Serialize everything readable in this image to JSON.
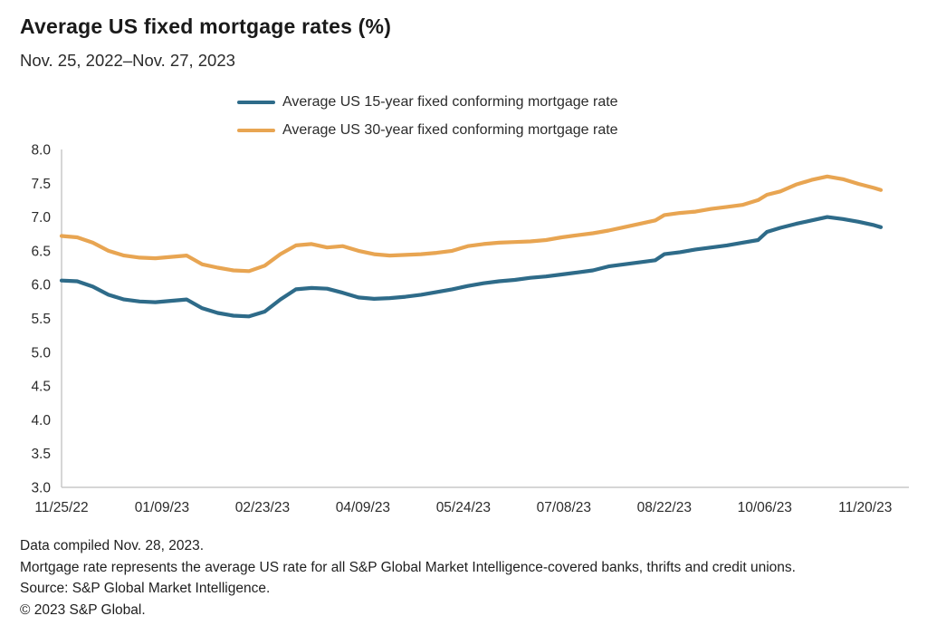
{
  "header": {
    "title": "Average US fixed mortgage rates (%)",
    "subtitle": "Nov. 25, 2022–Nov. 27, 2023"
  },
  "legend": [
    {
      "label": "Average US 15-year fixed conforming mortgage rate",
      "color": "#2E6B89"
    },
    {
      "label": "Average US 30-year fixed conforming mortgage rate",
      "color": "#E8A552"
    }
  ],
  "chart_data": {
    "type": "line",
    "title": "Average US fixed mortgage rates (%)",
    "subtitle": "Nov. 25, 2022–Nov. 27, 2023",
    "xlabel": "",
    "ylabel": "",
    "ylim": [
      3.0,
      8.0
    ],
    "y_ticks": [
      8.0,
      7.5,
      7.0,
      6.5,
      6.0,
      5.5,
      5.0,
      4.5,
      4.0,
      3.5,
      3.0
    ],
    "x_tick_labels": [
      "11/25/22",
      "01/09/23",
      "02/23/23",
      "04/09/23",
      "05/24/23",
      "07/08/23",
      "08/22/23",
      "10/06/23",
      "11/20/23"
    ],
    "x_tick_days": [
      0,
      45,
      90,
      135,
      180,
      225,
      270,
      315,
      360
    ],
    "x_total_days": 367,
    "grid": "off",
    "legend_position": "top",
    "axis_color": "#c9c9c9",
    "tick_label_color": "#2b2b2b",
    "x_days": [
      0,
      7,
      14,
      21,
      28,
      35,
      42,
      49,
      56,
      63,
      70,
      77,
      84,
      91,
      98,
      105,
      112,
      119,
      126,
      133,
      140,
      147,
      154,
      161,
      168,
      175,
      182,
      189,
      196,
      203,
      210,
      217,
      224,
      231,
      238,
      245,
      252,
      259,
      266,
      270,
      277,
      284,
      291,
      298,
      305,
      312,
      316,
      322,
      329,
      336,
      343,
      350,
      357,
      364,
      367
    ],
    "series": [
      {
        "name": "Average US 15-year fixed conforming mortgage rate",
        "color": "#2E6B89",
        "values": [
          6.06,
          6.05,
          5.97,
          5.85,
          5.78,
          5.75,
          5.74,
          5.76,
          5.78,
          5.65,
          5.58,
          5.54,
          5.53,
          5.6,
          5.78,
          5.93,
          5.95,
          5.94,
          5.88,
          5.81,
          5.79,
          5.8,
          5.82,
          5.85,
          5.89,
          5.93,
          5.98,
          6.02,
          6.05,
          6.07,
          6.1,
          6.12,
          6.15,
          6.18,
          6.21,
          6.27,
          6.3,
          6.33,
          6.36,
          6.45,
          6.48,
          6.52,
          6.55,
          6.58,
          6.62,
          6.66,
          6.78,
          6.84,
          6.9,
          6.95,
          7.0,
          6.97,
          6.93,
          6.88,
          6.85
        ]
      },
      {
        "name": "Average US 30-year fixed conforming mortgage rate",
        "color": "#E8A552",
        "values": [
          6.72,
          6.7,
          6.62,
          6.5,
          6.43,
          6.4,
          6.39,
          6.41,
          6.43,
          6.3,
          6.25,
          6.21,
          6.2,
          6.28,
          6.45,
          6.58,
          6.6,
          6.55,
          6.57,
          6.5,
          6.45,
          6.43,
          6.44,
          6.45,
          6.47,
          6.5,
          6.57,
          6.6,
          6.62,
          6.63,
          6.64,
          6.66,
          6.7,
          6.73,
          6.76,
          6.8,
          6.85,
          6.9,
          6.95,
          7.03,
          7.06,
          7.08,
          7.12,
          7.15,
          7.18,
          7.25,
          7.33,
          7.38,
          7.48,
          7.55,
          7.6,
          7.56,
          7.49,
          7.43,
          7.4
        ]
      }
    ]
  },
  "footnotes": [
    "Data compiled Nov. 28, 2023.",
    "Mortgage rate represents the average US rate for all S&P Global Market Intelligence-covered banks, thrifts and credit unions.",
    "Source: S&P Global Market Intelligence.",
    "© 2023 S&P Global."
  ]
}
